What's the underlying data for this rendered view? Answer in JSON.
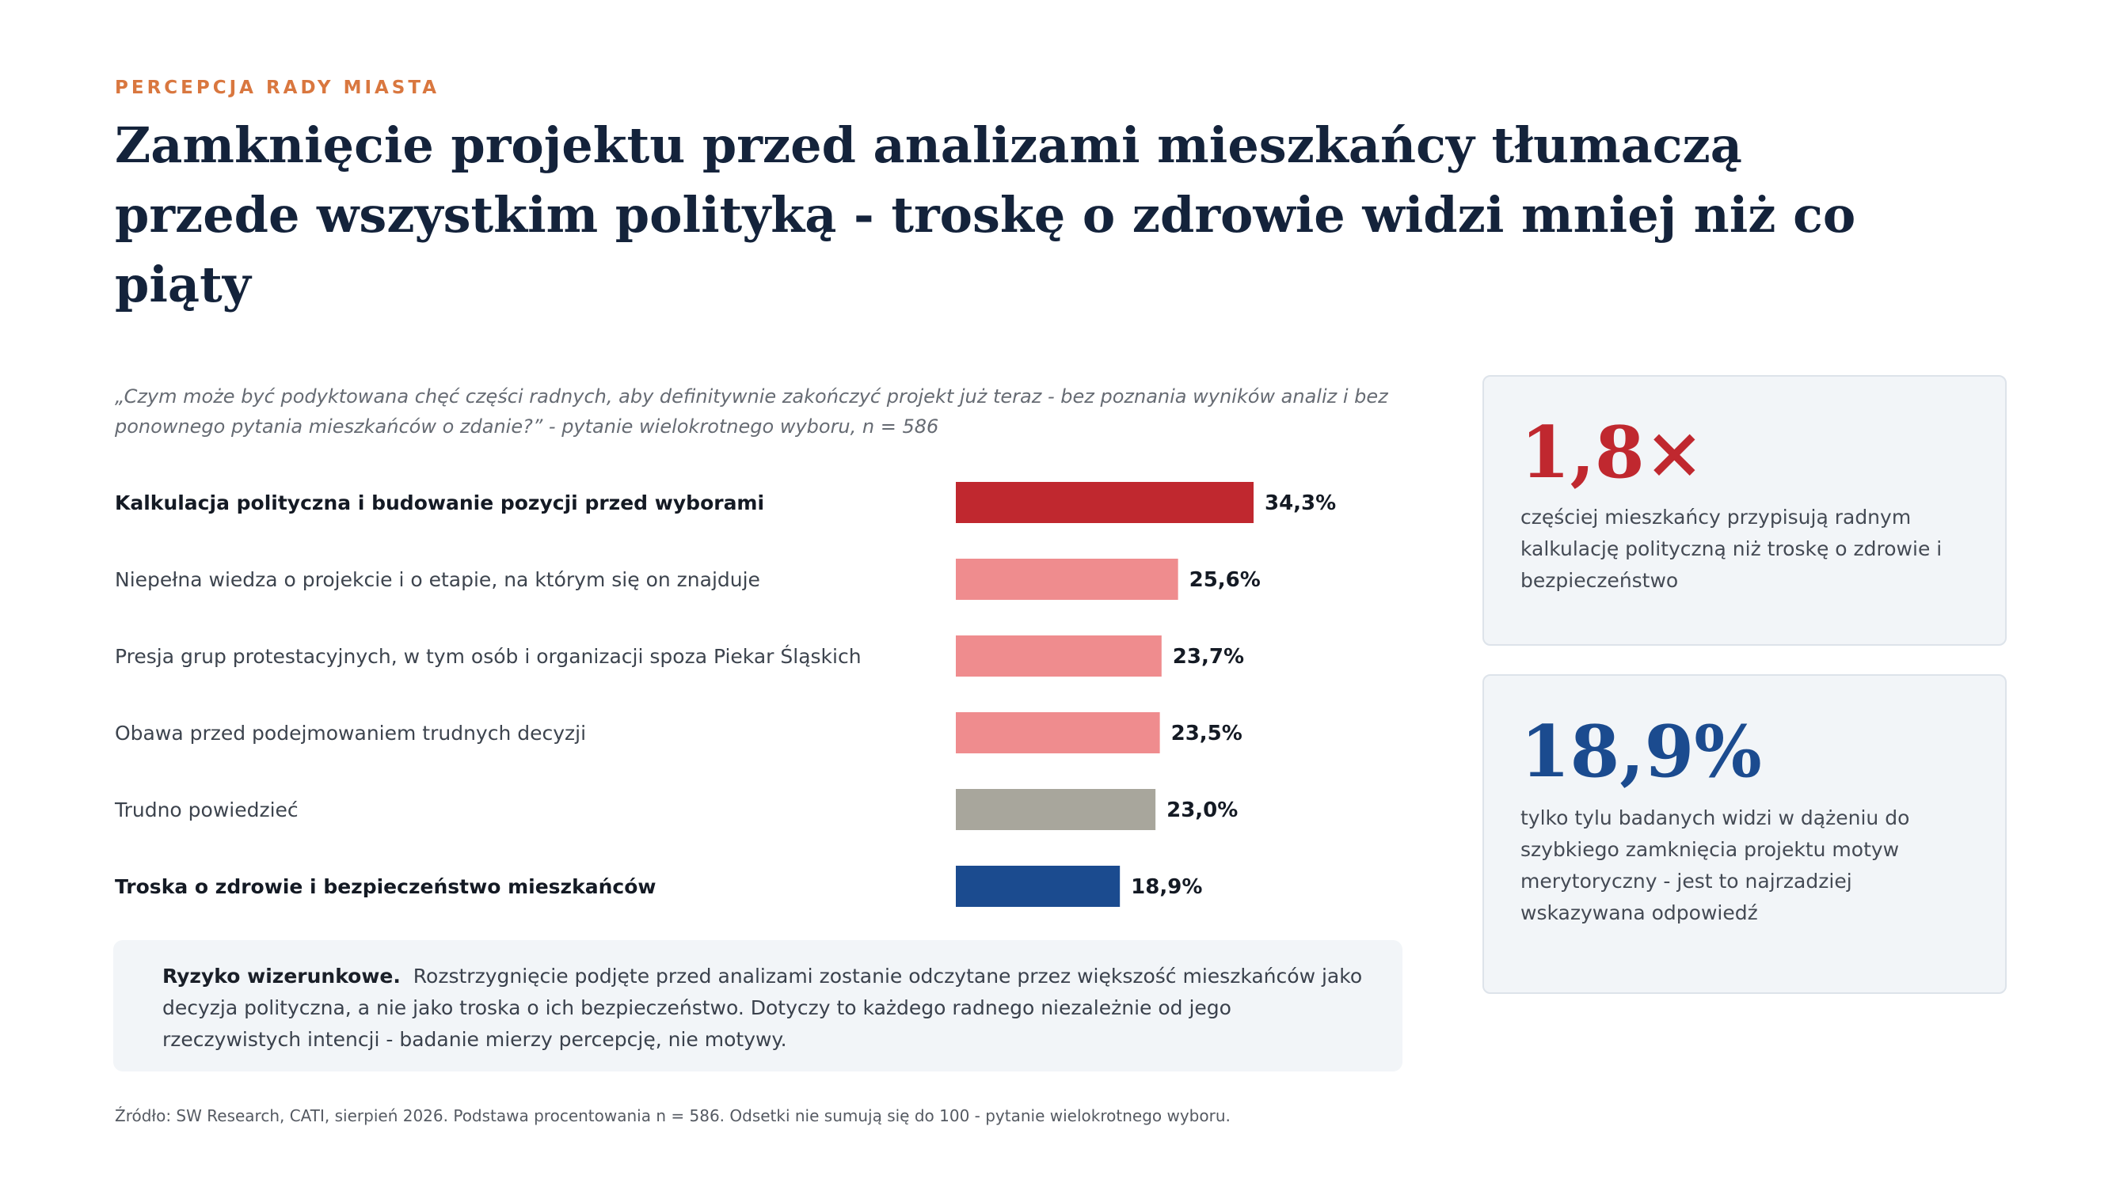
{
  "header": {
    "eyebrow": "PERCEPCJA RADY MIASTA",
    "title": "Zamknięcie projektu przed analizami mieszkańcy tłumaczą przede wszystkim polityką - troskę o zdrowie widzi mniej niż co piąty"
  },
  "question": "„Czym może być podyktowana chęć części radnych, aby definitywnie zakończyć projekt już teraz - bez poznania wyników analiz i bez ponownego pytania mieszkańców o zdanie?” - pytanie wielokrotnego wyboru, n = 586",
  "chart_data": {
    "type": "bar",
    "orientation": "horizontal",
    "categories": [
      "Kalkulacja polityczna i budowanie pozycji przed wyborami",
      "Niepełna wiedza o projekcie i o etapie, na którym się on znajduje",
      "Presja grup protestacyjnych, w tym osób i organizacji spoza Piekar Śląskich",
      "Obawa przed podejmowaniem trudnych decyzji",
      "Trudno powiedzieć",
      "Troska o zdrowie i bezpieczeństwo mieszkańców"
    ],
    "values": [
      34.3,
      25.6,
      23.7,
      23.5,
      23.0,
      18.9
    ],
    "value_labels": [
      "34,3%",
      "25,6%",
      "23,7%",
      "23,5%",
      "23,0%",
      "18,9%"
    ],
    "bold": [
      true,
      false,
      false,
      false,
      false,
      true
    ],
    "colors": [
      "#c0282f",
      "#ef8c8e",
      "#ef8c8e",
      "#ef8c8e",
      "#a8a69c",
      "#1b4b8f"
    ],
    "xlim": [
      0,
      100
    ],
    "grid": false,
    "legend": "none"
  },
  "risk": {
    "label": "Ryzyko wizerunkowe.",
    "text": "Rozstrzygnięcie podjęte przed analizami zostanie odczytane przez większość mieszkańców jako decyzja polityczna, a nie jako troska o ich bezpieczeństwo. Dotyczy to każdego radnego niezależnie od jego rzeczywistych intencji - badanie mierzy percepcję, nie motywy."
  },
  "source": "Źródło: SW Research, CATI, sierpień 2026. Podstawa procentowania n = 586. Odsetki nie sumują się do 100 - pytanie wielokrotnego wyboru.",
  "cards": [
    {
      "big": "1,8×",
      "text": "częściej mieszkańcy przypisują radnym kalkulację polityczną niż troskę o zdrowie i bezpieczeństwo",
      "color": "#c0282f"
    },
    {
      "big": "18,9%",
      "text": "tylko tylu badanych widzi w dążeniu do szybkiego zamknięcia projektu motyw merytoryczny - jest to najrzadziej wskazywana odpowiedź",
      "color": "#1b4b8f"
    }
  ]
}
